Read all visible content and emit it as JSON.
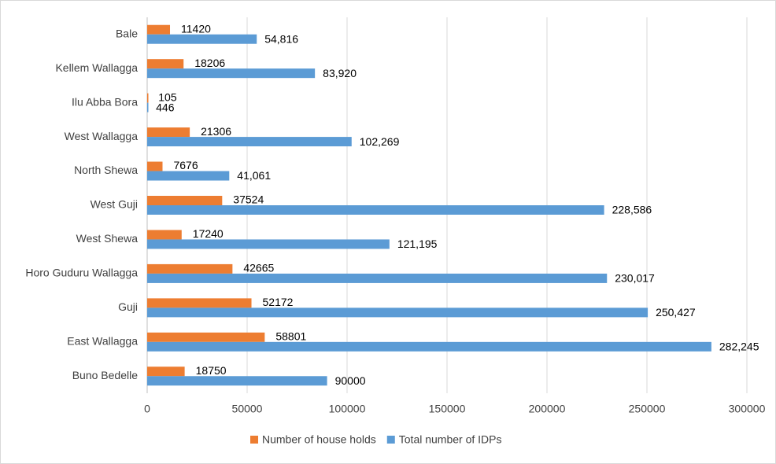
{
  "chart_data": {
    "type": "hbar",
    "categories": [
      "Bale",
      "Kellem Wallagga",
      "Ilu Abba Bora",
      "West Wallagga",
      "North Shewa",
      "West Guji",
      "West Shewa",
      "Horo Guduru Wallagga",
      "Guji",
      "East Wallagga",
      "Buno Bedelle"
    ],
    "series": [
      {
        "name": "Number of house holds",
        "color": "#ed7d31",
        "values": [
          11420,
          18206,
          105,
          21306,
          7676,
          37524,
          17240,
          42665,
          52172,
          58801,
          18750
        ]
      },
      {
        "name": "Total number of IDPs",
        "color": "#5b9bd5",
        "values": [
          54816,
          83920,
          446,
          102269,
          41061,
          228586,
          121195,
          230017,
          250427,
          282245,
          90000
        ],
        "value_labels": [
          "54,816",
          "83,920",
          "446",
          "102,269",
          "41,061",
          "228,586",
          "121,195",
          "230,017",
          "250,427",
          "282,245",
          "90000"
        ]
      }
    ],
    "xlim": [
      0,
      300000
    ],
    "xticks": [
      0,
      50000,
      100000,
      150000,
      200000,
      250000,
      300000
    ],
    "grid": true,
    "legend": "bottom"
  }
}
